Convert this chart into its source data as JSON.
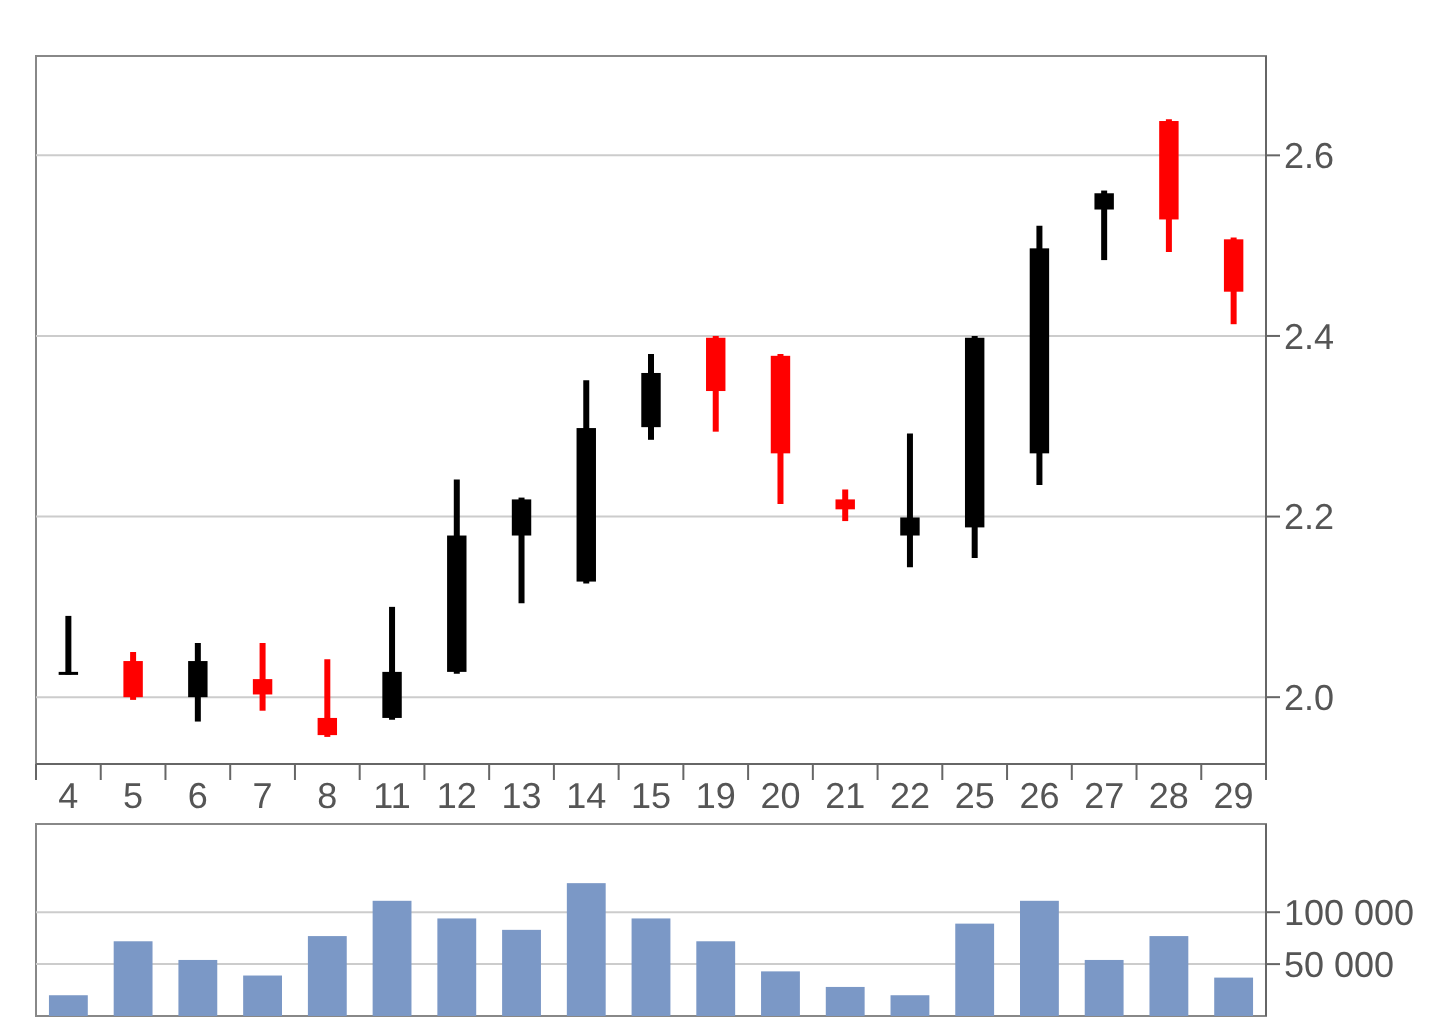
{
  "chart_data": [
    {
      "type": "candlestick",
      "categories": [
        "4",
        "5",
        "6",
        "7",
        "8",
        "11",
        "12",
        "13",
        "14",
        "15",
        "19",
        "20",
        "21",
        "22",
        "25",
        "26",
        "27",
        "28",
        "29"
      ],
      "ohlc": [
        [
          2.026,
          2.09,
          2.025,
          2.028
        ],
        [
          2.04,
          2.05,
          1.997,
          2.0
        ],
        [
          2.0,
          2.06,
          1.973,
          2.04
        ],
        [
          2.02,
          2.06,
          1.985,
          2.003
        ],
        [
          1.977,
          2.042,
          1.956,
          1.958
        ],
        [
          1.977,
          2.1,
          1.975,
          2.028
        ],
        [
          2.028,
          2.241,
          2.026,
          2.179
        ],
        [
          2.179,
          2.221,
          2.104,
          2.219
        ],
        [
          2.128,
          2.351,
          2.126,
          2.298
        ],
        [
          2.299,
          2.38,
          2.285,
          2.359
        ],
        [
          2.398,
          2.4,
          2.294,
          2.339
        ],
        [
          2.378,
          2.38,
          2.214,
          2.27
        ],
        [
          2.219,
          2.23,
          2.195,
          2.208
        ],
        [
          2.179,
          2.292,
          2.144,
          2.199
        ],
        [
          2.188,
          2.4,
          2.154,
          2.398
        ],
        [
          2.27,
          2.522,
          2.235,
          2.497
        ],
        [
          2.54,
          2.561,
          2.484,
          2.558
        ],
        [
          2.638,
          2.64,
          2.493,
          2.529
        ],
        [
          2.507,
          2.509,
          2.413,
          2.449
        ]
      ],
      "colors": [
        "#000000",
        "#ff0000",
        "#000000",
        "#ff0000",
        "#ff0000",
        "#000000",
        "#000000",
        "#000000",
        "#000000",
        "#000000",
        "#ff0000",
        "#ff0000",
        "#ff0000",
        "#000000",
        "#000000",
        "#000000",
        "#000000",
        "#ff0000",
        "#ff0000"
      ],
      "ylim": [
        1.926,
        2.71
      ],
      "yticks": [
        {
          "value": 2.0,
          "label": "2.0"
        },
        2.2,
        2.4,
        2.6
      ],
      "grid": "y"
    },
    {
      "type": "bar",
      "categories": [
        null,
        null,
        null,
        null,
        null,
        null,
        null,
        null,
        null,
        null,
        null,
        null,
        null,
        null,
        null,
        null,
        null,
        null,
        null
      ],
      "values": [
        20000,
        72000,
        54000,
        39000,
        77000,
        111000,
        94000,
        83000,
        128000,
        94000,
        72000,
        43000,
        28000,
        20000,
        89000,
        111000,
        54000,
        77000,
        37000
      ],
      "color": "#7b98c6",
      "ylim": [
        0,
        185000
      ],
      "yticks": [
        {
          "value": 50000,
          "label": "50 000"
        },
        {
          "value": 100000,
          "label": "100 000"
        }
      ],
      "grid": "y",
      "tick_labels": "y"
    }
  ]
}
